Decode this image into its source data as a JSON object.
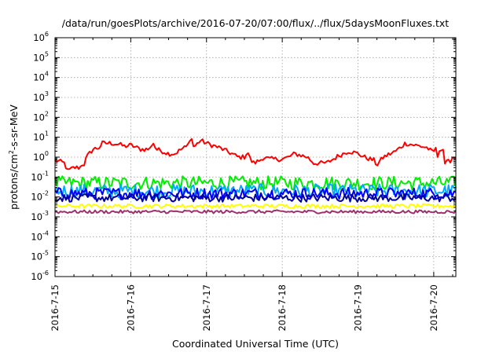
{
  "chart_data": {
    "type": "line",
    "title": "/data/run/goesPlots/archive/2016-07-20/07:00/flux/../flux/5daysMoonFluxes.txt",
    "xlabel": "Coordinated Universal Time (UTC)",
    "ylabel": {
      "prefix": "protons/cm",
      "sup": "2",
      "suffix": "-s-sr-MeV"
    },
    "xlim": [
      "2016-07-15T00:00",
      "2016-07-20T07:00"
    ],
    "ylim": [
      1e-06,
      1000000.0
    ],
    "yscale": "log",
    "grid": true,
    "x_ticks": [
      {
        "date": "2016-07-15",
        "label": "2016-7-15"
      },
      {
        "date": "2016-07-16",
        "label": "2016-7-16"
      },
      {
        "date": "2016-07-17",
        "label": "2016-7-17"
      },
      {
        "date": "2016-07-18",
        "label": "2016-7-18"
      },
      {
        "date": "2016-07-19",
        "label": "2016-7-19"
      },
      {
        "date": "2016-07-20",
        "label": "2016-7-20"
      }
    ],
    "y_ticks": [
      {
        "value": 1e-06,
        "base": "10",
        "exp": "-6"
      },
      {
        "value": 1e-05,
        "base": "10",
        "exp": "-5"
      },
      {
        "value": 0.0001,
        "base": "10",
        "exp": "-4"
      },
      {
        "value": 0.001,
        "base": "10",
        "exp": "-3"
      },
      {
        "value": 0.01,
        "base": "10",
        "exp": "-2"
      },
      {
        "value": 0.1,
        "base": "10",
        "exp": "-1"
      },
      {
        "value": 1,
        "base": "10",
        "exp": "0"
      },
      {
        "value": 10,
        "base": "10",
        "exp": "1"
      },
      {
        "value": 100,
        "base": "10",
        "exp": "2"
      },
      {
        "value": 1000,
        "base": "10",
        "exp": "3"
      },
      {
        "value": 10000,
        "base": "10",
        "exp": "4"
      },
      {
        "value": 100000,
        "base": "10",
        "exp": "5"
      },
      {
        "value": 1000000,
        "base": "10",
        "exp": "6"
      }
    ],
    "series": [
      {
        "color": "#ff0000",
        "noise": 0.12,
        "points": [
          [
            "2016-07-15T00:00",
            0.7
          ],
          [
            "2016-07-15T03:00",
            0.5
          ],
          [
            "2016-07-15T04:00",
            0.2
          ],
          [
            "2016-07-15T06:00",
            0.3
          ],
          [
            "2016-07-15T08:00",
            0.3
          ],
          [
            "2016-07-15T08:30",
            0.5
          ],
          [
            "2016-07-15T09:00",
            0.35
          ],
          [
            "2016-07-15T10:00",
            1.0
          ],
          [
            "2016-07-15T12:00",
            2.5
          ],
          [
            "2016-07-15T14:00",
            3.0
          ],
          [
            "2016-07-15T15:00",
            5.0
          ],
          [
            "2016-07-15T18:00",
            5.0
          ],
          [
            "2016-07-15T20:00",
            4.5
          ],
          [
            "2016-07-15T22:00",
            3.5
          ],
          [
            "2016-07-16T00:00",
            4.0
          ],
          [
            "2016-07-16T03:00",
            2.5
          ],
          [
            "2016-07-16T06:00",
            2.5
          ],
          [
            "2016-07-16T07:00",
            6.0
          ],
          [
            "2016-07-16T08:00",
            2.5
          ],
          [
            "2016-07-16T10:00",
            2.0
          ],
          [
            "2016-07-16T12:00",
            1.5
          ],
          [
            "2016-07-16T14:00",
            1.5
          ],
          [
            "2016-07-16T16:00",
            2.5
          ],
          [
            "2016-07-16T18:00",
            3.5
          ],
          [
            "2016-07-16T19:00",
            12.0
          ],
          [
            "2016-07-16T20:00",
            3.0
          ],
          [
            "2016-07-16T22:00",
            7.0
          ],
          [
            "2016-07-17T00:00",
            5.0
          ],
          [
            "2016-07-17T04:00",
            3.0
          ],
          [
            "2016-07-17T08:00",
            1.5
          ],
          [
            "2016-07-17T10:00",
            1.0
          ],
          [
            "2016-07-17T12:00",
            1.0
          ],
          [
            "2016-07-17T13:00",
            2.0
          ],
          [
            "2016-07-17T14:00",
            0.7
          ],
          [
            "2016-07-17T15:00",
            0.5
          ],
          [
            "2016-07-17T17:00",
            0.7
          ],
          [
            "2016-07-17T18:00",
            1.0
          ],
          [
            "2016-07-17T20:00",
            0.8
          ],
          [
            "2016-07-18T00:00",
            0.8
          ],
          [
            "2016-07-18T02:00",
            1.0
          ],
          [
            "2016-07-18T04:00",
            1.5
          ],
          [
            "2016-07-18T08:00",
            1.0
          ],
          [
            "2016-07-18T10:00",
            0.5
          ],
          [
            "2016-07-18T14:00",
            0.5
          ],
          [
            "2016-07-18T18:00",
            1.2
          ],
          [
            "2016-07-18T21:00",
            2.0
          ],
          [
            "2016-07-19T00:00",
            1.5
          ],
          [
            "2016-07-19T02:00",
            1.0
          ],
          [
            "2016-07-19T05:00",
            0.7
          ],
          [
            "2016-07-19T06:00",
            0.4
          ],
          [
            "2016-07-19T08:00",
            1.0
          ],
          [
            "2016-07-19T12:00",
            2.0
          ],
          [
            "2016-07-19T15:00",
            5.0
          ],
          [
            "2016-07-19T18:00",
            4.0
          ],
          [
            "2016-07-19T22:00",
            3.0
          ],
          [
            "2016-07-20T00:00",
            1.5
          ],
          [
            "2016-07-20T00:30",
            7.0
          ],
          [
            "2016-07-20T01:00",
            0.5
          ],
          [
            "2016-07-20T01:30",
            1.5
          ],
          [
            "2016-07-20T02:00",
            3.0
          ],
          [
            "2016-07-20T03:00",
            2.5
          ],
          [
            "2016-07-20T03:30",
            0.5
          ],
          [
            "2016-07-20T05:00",
            0.6
          ],
          [
            "2016-07-20T06:00",
            1.0
          ],
          [
            "2016-07-20T07:00",
            1.1
          ]
        ]
      },
      {
        "color": "#00ee00",
        "noise": 0.35,
        "points": [
          [
            "2016-07-15T00:00",
            0.05
          ],
          [
            "2016-07-20T07:00",
            0.05
          ]
        ]
      },
      {
        "color": "#00aaff",
        "noise": 0.35,
        "points": [
          [
            "2016-07-15T00:00",
            0.02
          ],
          [
            "2016-07-20T07:00",
            0.02
          ]
        ]
      },
      {
        "color": "#0000ff",
        "noise": 0.3,
        "points": [
          [
            "2016-07-15T00:00",
            0.015
          ],
          [
            "2016-07-20T07:00",
            0.015
          ]
        ]
      },
      {
        "color": "#0000a0",
        "noise": 0.2,
        "points": [
          [
            "2016-07-15T00:00",
            0.009
          ],
          [
            "2016-07-20T07:00",
            0.009
          ]
        ]
      },
      {
        "color": "#ffff00",
        "noise": 0.1,
        "points": [
          [
            "2016-07-15T00:00",
            0.0035
          ],
          [
            "2016-07-20T07:00",
            0.0035
          ]
        ]
      },
      {
        "color": "#a0306a",
        "noise": 0.08,
        "points": [
          [
            "2016-07-15T00:00",
            0.0018
          ],
          [
            "2016-07-20T07:00",
            0.0018
          ]
        ]
      }
    ]
  }
}
